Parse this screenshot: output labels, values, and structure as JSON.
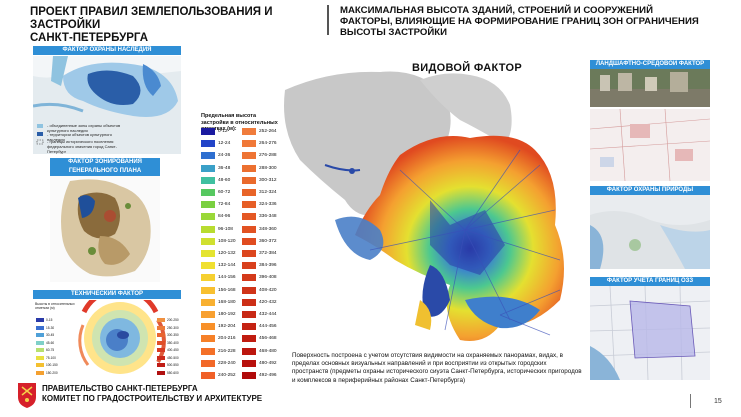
{
  "header": {
    "title_line1": "ПРОЕКТ ПРАВИЛ ЗЕМЛЕПОЛЬЗОВАНИЯ И ЗАСТРОЙКИ",
    "title_line2": "САНКТ-ПЕТЕРБУРГА",
    "subtitle_line1": "МАКСИМАЛЬНАЯ ВЫСОТА ЗДАНИЙ, СТРОЕНИЙ И СООРУЖЕНИЙ",
    "subtitle_line2": "ФАКТОРЫ, ВЛИЯЮЩИЕ НА ФОРМИРОВАНИЕ ГРАНИЦ ЗОН ОГРАНИЧЕНИЯ ВЫСОТЫ ЗАСТРОЙКИ"
  },
  "panels": {
    "heritage": {
      "label": "ФАКТОР ОХРАНЫ НАСЛЕДИЯ",
      "legend": [
        "- объединенные зоны охраны объектов культурного наследия",
        "- территории объектов культурного наследия",
        "- границы исторического поселения федерального значения город Санкт-Петербург"
      ]
    },
    "zoning": {
      "label": "ФАКТОР ЗОНИРОВАНИЯ ГЕНЕРАЛЬНОГО ПЛАНА"
    },
    "technical": {
      "label": "ТЕХНИЧЕСКИЙ ФАКТОР",
      "legend_title": "Высоты в относительных отметках (м)",
      "legend_left": [
        "0-15",
        "15-30",
        "30-45",
        "45-60",
        "60-75",
        "75-100",
        "100-150",
        "150-200"
      ],
      "legend_right": [
        "200-250",
        "250-300",
        "300-350",
        "350-400",
        "400-450",
        "450-500",
        "500-550",
        "550-600"
      ]
    },
    "landscape": {
      "label": "ЛАНДШАФТНО-СРЕДОВОЙ ФАКТОР"
    },
    "nature": {
      "label": "ФАКТОР ОХРАНЫ ПРИРОДЫ"
    },
    "ozz": {
      "label": "ФАКТОР УЧЕТА ГРАНИЦ ОЗЗ"
    }
  },
  "main": {
    "title": "ВИДОВОЙ ФАКТОР",
    "legend_title": "Предельная высота застройки в относительных отметках (м):",
    "legend_left": [
      {
        "label": "0-12",
        "color": "#1a1aa0"
      },
      {
        "label": "12-24",
        "color": "#2244c8"
      },
      {
        "label": "24-36",
        "color": "#2e6fd0"
      },
      {
        "label": "36-48",
        "color": "#3aa0c8"
      },
      {
        "label": "48-60",
        "color": "#3fc0a0"
      },
      {
        "label": "60-72",
        "color": "#56c860"
      },
      {
        "label": "72-84",
        "color": "#7ad040"
      },
      {
        "label": "84-96",
        "color": "#9ad838"
      },
      {
        "label": "96-108",
        "color": "#b8dc30"
      },
      {
        "label": "108-120",
        "color": "#d0e030"
      },
      {
        "label": "120-132",
        "color": "#e4e430"
      },
      {
        "label": "132-144",
        "color": "#f0e030"
      },
      {
        "label": "144-156",
        "color": "#f6d030"
      },
      {
        "label": "156-168",
        "color": "#f8c030"
      },
      {
        "label": "168-180",
        "color": "#f8b030"
      },
      {
        "label": "180-192",
        "color": "#f8a030"
      },
      {
        "label": "192-204",
        "color": "#f89028"
      },
      {
        "label": "204-216",
        "color": "#f68028"
      },
      {
        "label": "216-228",
        "color": "#f47028"
      },
      {
        "label": "228-240",
        "color": "#f26828"
      },
      {
        "label": "240-252",
        "color": "#f06028"
      }
    ],
    "legend_right": [
      {
        "label": "252-264",
        "color": "#f07c3c"
      },
      {
        "label": "264-276",
        "color": "#f07838"
      },
      {
        "label": "276-288",
        "color": "#ee7434"
      },
      {
        "label": "288-300",
        "color": "#ec7030"
      },
      {
        "label": "300-312",
        "color": "#ea6a2c"
      },
      {
        "label": "312-324",
        "color": "#e86428"
      },
      {
        "label": "324-336",
        "color": "#e65e26"
      },
      {
        "label": "336-348",
        "color": "#e45824"
      },
      {
        "label": "348-360",
        "color": "#e25222"
      },
      {
        "label": "360-372",
        "color": "#e04c20"
      },
      {
        "label": "372-384",
        "color": "#dc461e"
      },
      {
        "label": "384-396",
        "color": "#d8401c"
      },
      {
        "label": "396-408",
        "color": "#d43a1a"
      },
      {
        "label": "408-420",
        "color": "#d03418"
      },
      {
        "label": "420-432",
        "color": "#cc2e16"
      },
      {
        "label": "432-444",
        "color": "#c82814"
      },
      {
        "label": "444-456",
        "color": "#c42212"
      },
      {
        "label": "456-468",
        "color": "#c01c10"
      },
      {
        "label": "468-480",
        "color": "#bc160e"
      },
      {
        "label": "480-492",
        "color": "#b8100c"
      },
      {
        "label": "492-496",
        "color": "#b00a0a"
      }
    ],
    "description": "Поверхность построена с учетом отсутствия видимости на охраняемых панорамах, видах, в пределах основных визуальных направлений и при восприятии из открытых городских пространств (предметы охраны исторического сиуэта Санкт-Петербурга, исторических пригородов и комплексов в периферийных районах Санкт-Петербурга)"
  },
  "footer": {
    "gov_line1": "ПРАВИТЕЛЬСТВО САНКТ-ПЕТЕРБУРГА",
    "gov_line2": "КОМИТЕТ ПО ГРАДОСТРОИТЕЛЬСТВУ И АРХИТЕКТУРЕ",
    "page_number": "15"
  },
  "colors": {
    "accent_bar": "#2f8fd6",
    "coat_of_arms": "#d6202a"
  }
}
